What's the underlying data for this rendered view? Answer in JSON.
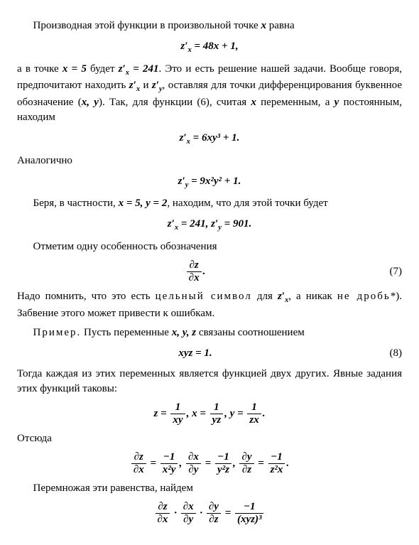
{
  "fonts": {
    "body_size_pt": 15,
    "family": "Georgia/Times",
    "math_weight": "bold-italic"
  },
  "colors": {
    "text": "#000000",
    "background": "#ffffff"
  },
  "p1": "Производная этой функции в произвольной точке",
  "p1x": "x",
  "p1b": "равна",
  "eq1_lhs": "z′",
  "eq1_sub": "x",
  "eq1_rhs_a": " = 48x + 1,",
  "p2a": "а в точке ",
  "p2x": "x = 5",
  "p2b": " будет ",
  "p2z": "z′",
  "p2zs": "x",
  "p2zv": " = 241",
  "p2c": ". Это и есть решение нашей задачи. Вообще говоря, предпочитают находить ",
  "p2zx": "z′",
  "p2zxs": "x",
  "p2and": " и ",
  "p2zy": "z′",
  "p2zys": "y",
  "p2d": ", оставляя для точки дифференцирования буквенное обозначение (",
  "p2xy": "x, y",
  "p2e": "). Так, для функции (6), считая ",
  "p2xv": "x",
  "p2f": " переменным, а ",
  "p2yv": "y",
  "p2g": " постоянным, находим",
  "eq2": "z′",
  "eq2s": "x",
  "eq2r": " = 6xy³ + 1.",
  "p3": "Аналогично",
  "eq3": "z′",
  "eq3s": "y",
  "eq3r": " = 9x²y² + 1.",
  "p4a": "Беря, в частности, ",
  "p4x": "x = 5, y = 2",
  "p4b": ", находим, что для этой точки будет",
  "eq4a": "z′",
  "eq4as": "x",
  "eq4av": " = 241,   ",
  "eq4b": "z′",
  "eq4bs": "y",
  "eq4bv": " = 901.",
  "p5": "Отметим одну особенность обозначения",
  "eq5_num": "∂z",
  "eq5_den": "∂x",
  "eq5_dot": ".",
  "eq5_no": "(7)",
  "p6a": "Надо помнить, что это есть ",
  "p6w1": "цельный символ",
  "p6b": " для ",
  "p6z": "z′",
  "p6zs": "x",
  "p6c": ", а никак ",
  "p6w2": "не дробь",
  "p6d": "*). Забвение этого может привести к ошибкам.",
  "p7a": "Пример.",
  "p7b": " Пусть переменные ",
  "p7xyz": "x, y, z",
  "p7c": " связаны соотношением",
  "eq6": "xyz = 1.",
  "eq6_no": "(8)",
  "p8": "Тогда каждая из этих переменных является функцией двух других. Явные задания этих функций таковы:",
  "eq7_z": "z = ",
  "eq7_zn": "1",
  "eq7_zd": "xy",
  "eq7_x": ",    x = ",
  "eq7_xn": "1",
  "eq7_xd": "yz",
  "eq7_y": ",    y = ",
  "eq7_yn": "1",
  "eq7_yd": "zx",
  "eq7_end": ".",
  "p9": "Отсюда",
  "eq8_1n": "∂z",
  "eq8_1d": "∂x",
  "eq8_eq": " = ",
  "eq8_1vn": "−1",
  "eq8_1vd": "x²y",
  "eq8_sep": ",   ",
  "eq8_2n": "∂x",
  "eq8_2d": "∂y",
  "eq8_2vn": "−1",
  "eq8_2vd": "y²z",
  "eq8_3n": "∂y",
  "eq8_3d": "∂z",
  "eq8_3vn": "−1",
  "eq8_3vd": "z²x",
  "eq8_end": ".",
  "p10": "Перемножая эти равенства, найдем",
  "eq9_1n": "∂z",
  "eq9_1d": "∂x",
  "eq9_dot": " · ",
  "eq9_2n": "∂x",
  "eq9_2d": "∂y",
  "eq9_3n": "∂y",
  "eq9_3d": "∂z",
  "eq9_rn": "−1",
  "eq9_rd": "(xyz)³"
}
